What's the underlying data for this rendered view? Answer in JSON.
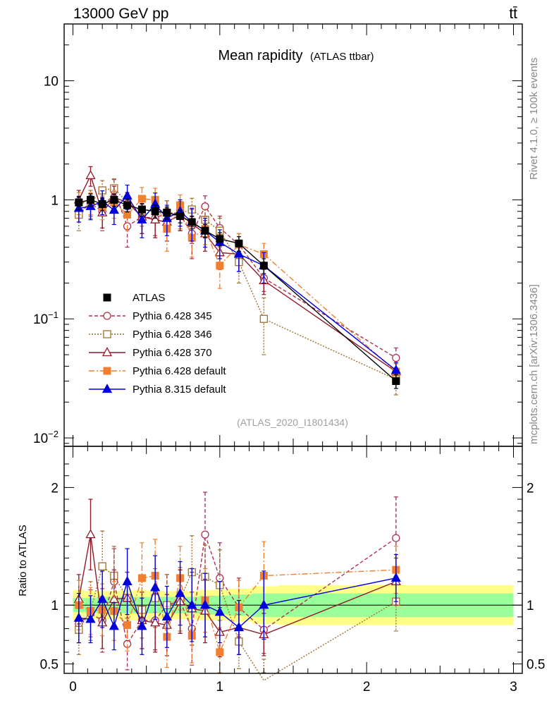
{
  "header": {
    "left": "13000 GeV pp",
    "right": "tt̄"
  },
  "side_texts": {
    "rivet": "Rivet 4.1.0, ≥ 100k events",
    "mcplots": "mcplots.cern.ch [arXiv:1306.3436]"
  },
  "chart_data": {
    "type": "line",
    "title": "Mean rapidity",
    "subtitle": "(ATLAS ttbar)",
    "watermark": "(ATLAS_2020_I1801434)",
    "xlim": [
      -0.06,
      3.06
    ],
    "main": {
      "yscale": "log",
      "ylim": [
        0.0085,
        30
      ],
      "ytick_labels": [
        {
          "value": 10,
          "label": "10",
          "sup": ""
        },
        {
          "value": 1,
          "label": "1",
          "sup": ""
        },
        {
          "value": 0.1,
          "label": "10",
          "sup": "−1"
        },
        {
          "value": 0.01,
          "label": "10",
          "sup": "−2"
        }
      ]
    },
    "ratio": {
      "ylabel": "Ratio to ATLAS",
      "ylim": [
        0.42,
        2.35
      ],
      "ytick_labels": [
        {
          "value": 2,
          "label": "2"
        },
        {
          "value": 1,
          "label": "1"
        },
        {
          "value": 0.5,
          "label": "0.5"
        }
      ]
    },
    "xticks": [
      {
        "value": 0,
        "label": "0"
      },
      {
        "value": 1,
        "label": "1"
      },
      {
        "value": 2,
        "label": "2"
      },
      {
        "value": 3,
        "label": "3"
      }
    ],
    "x": [
      0.04,
      0.12,
      0.2,
      0.28,
      0.37,
      0.47,
      0.56,
      0.64,
      0.73,
      0.81,
      0.9,
      1.0,
      1.13,
      1.3,
      2.2
    ],
    "bands": [
      {
        "x0": 0.0,
        "x1": 0.08,
        "g": 0.06,
        "y": 0.13
      },
      {
        "x0": 0.08,
        "x1": 0.16,
        "g": 0.06,
        "y": 0.12
      },
      {
        "x0": 0.16,
        "x1": 0.24,
        "g": 0.07,
        "y": 0.12
      },
      {
        "x0": 0.24,
        "x1": 0.32,
        "g": 0.07,
        "y": 0.12
      },
      {
        "x0": 0.32,
        "x1": 0.42,
        "g": 0.07,
        "y": 0.13
      },
      {
        "x0": 0.42,
        "x1": 0.51,
        "g": 0.07,
        "y": 0.13
      },
      {
        "x0": 0.51,
        "x1": 0.6,
        "g": 0.07,
        "y": 0.12
      },
      {
        "x0": 0.6,
        "x1": 0.68,
        "g": 0.07,
        "y": 0.12
      },
      {
        "x0": 0.68,
        "x1": 0.77,
        "g": 0.07,
        "y": 0.12
      },
      {
        "x0": 0.77,
        "x1": 0.86,
        "g": 0.07,
        "y": 0.12
      },
      {
        "x0": 0.86,
        "x1": 0.95,
        "g": 0.08,
        "y": 0.13
      },
      {
        "x0": 0.95,
        "x1": 1.06,
        "g": 0.08,
        "y": 0.13
      },
      {
        "x0": 1.06,
        "x1": 1.22,
        "g": 0.09,
        "y": 0.14
      },
      {
        "x0": 1.22,
        "x1": 1.4,
        "g": 0.1,
        "y": 0.16
      },
      {
        "x0": 1.4,
        "x1": 3.0,
        "g": 0.1,
        "y": 0.17
      }
    ],
    "series": [
      {
        "name": "ATLAS",
        "color": "#000000",
        "dash": "",
        "marker": "square-filled",
        "values": [
          0.95,
          1.0,
          0.92,
          1.0,
          0.9,
          0.83,
          0.8,
          0.78,
          0.73,
          0.65,
          0.55,
          0.47,
          0.43,
          0.28,
          0.03
        ],
        "err": [
          0.12,
          0.12,
          0.11,
          0.12,
          0.11,
          0.1,
          0.1,
          0.09,
          0.09,
          0.08,
          0.07,
          0.06,
          0.06,
          0.04,
          0.004
        ],
        "ratio": [],
        "ratio_err": []
      },
      {
        "name": "Pythia 6.428 345",
        "color": "#b03050",
        "dash": "5,3",
        "marker": "circle-open",
        "values": [
          0.8,
          0.93,
          0.8,
          1.2,
          0.6,
          0.72,
          0.7,
          0.78,
          0.75,
          0.52,
          0.88,
          0.58,
          0.42,
          0.22,
          0.047
        ],
        "err": [
          0.15,
          0.2,
          0.25,
          0.28,
          0.2,
          0.2,
          0.2,
          0.2,
          0.2,
          0.2,
          0.2,
          0.15,
          0.1,
          0.05,
          0.01
        ],
        "ratio": [
          0.84,
          0.93,
          0.87,
          1.2,
          0.67,
          0.87,
          0.87,
          1.0,
          1.03,
          0.8,
          1.6,
          1.23,
          0.98,
          0.79,
          1.57
        ],
        "ratio_err": [
          0.16,
          0.2,
          0.27,
          0.28,
          0.22,
          0.24,
          0.25,
          0.26,
          0.27,
          0.31,
          0.36,
          0.3,
          0.25,
          0.2,
          0.35
        ]
      },
      {
        "name": "Pythia 6.428 346",
        "color": "#a07030",
        "dash": "2,2",
        "marker": "square-open",
        "values": [
          0.75,
          0.95,
          1.2,
          1.25,
          0.95,
          0.8,
          0.85,
          0.78,
          0.77,
          0.83,
          0.68,
          0.55,
          0.3,
          0.1,
          0.031
        ],
        "err": [
          0.2,
          0.25,
          0.25,
          0.25,
          0.2,
          0.2,
          0.2,
          0.2,
          0.2,
          0.2,
          0.15,
          0.15,
          0.1,
          0.05,
          0.008
        ],
        "ratio": [
          0.79,
          0.95,
          1.33,
          1.25,
          1.06,
          0.96,
          1.06,
          1.0,
          1.05,
          1.28,
          1.24,
          1.17,
          0.69,
          0.36,
          1.03
        ],
        "ratio_err": [
          0.21,
          0.25,
          0.3,
          0.25,
          0.22,
          0.24,
          0.25,
          0.26,
          0.27,
          0.31,
          0.27,
          0.3,
          0.23,
          0.18,
          0.25
        ]
      },
      {
        "name": "Pythia 6.428 370",
        "color": "#901828",
        "dash": "",
        "marker": "triangle-open",
        "values": [
          1.0,
          1.6,
          0.78,
          1.05,
          0.95,
          0.72,
          0.68,
          0.65,
          0.75,
          0.63,
          0.52,
          0.36,
          0.35,
          0.21,
          0.036
        ],
        "err": [
          0.2,
          0.3,
          0.2,
          0.25,
          0.2,
          0.2,
          0.2,
          0.2,
          0.2,
          0.2,
          0.15,
          0.1,
          0.1,
          0.05,
          0.006
        ],
        "ratio": [
          1.05,
          1.6,
          0.85,
          1.05,
          1.06,
          0.87,
          0.85,
          0.83,
          1.03,
          0.97,
          0.95,
          0.77,
          0.81,
          0.75,
          1.2
        ],
        "ratio_err": [
          0.21,
          0.3,
          0.22,
          0.25,
          0.22,
          0.24,
          0.25,
          0.26,
          0.27,
          0.31,
          0.27,
          0.21,
          0.23,
          0.18,
          0.2
        ]
      },
      {
        "name": "Pythia 6.428 default",
        "color": "#f08030",
        "dash": "8,3,2,3",
        "marker": "square-filled",
        "values": [
          0.95,
          0.95,
          0.88,
          0.95,
          0.75,
          1.02,
          1.0,
          0.57,
          0.9,
          0.48,
          0.57,
          0.28,
          0.42,
          0.35,
          0.036
        ],
        "err": [
          0.2,
          0.2,
          0.2,
          0.25,
          0.2,
          0.25,
          0.25,
          0.2,
          0.2,
          0.15,
          0.15,
          0.1,
          0.1,
          0.08,
          0.006
        ],
        "ratio": [
          1.0,
          0.95,
          0.96,
          0.95,
          0.83,
          1.23,
          1.25,
          0.73,
          1.23,
          0.74,
          1.04,
          0.6,
          0.98,
          1.25,
          1.3
        ],
        "ratio_err": [
          0.21,
          0.2,
          0.22,
          0.25,
          0.22,
          0.3,
          0.31,
          0.26,
          0.27,
          0.23,
          0.27,
          0.21,
          0.23,
          0.29,
          0.2
        ]
      },
      {
        "name": "Pythia 8.315 default",
        "color": "#0000dd",
        "dash": "",
        "marker": "triangle-filled",
        "values": [
          0.85,
          0.88,
          0.97,
          0.82,
          1.08,
          0.68,
          0.92,
          0.7,
          0.8,
          0.65,
          0.55,
          0.44,
          0.35,
          0.28,
          0.037
        ],
        "err": [
          0.2,
          0.2,
          0.22,
          0.2,
          0.25,
          0.2,
          0.22,
          0.2,
          0.2,
          0.2,
          0.15,
          0.12,
          0.1,
          0.08,
          0.006
        ],
        "ratio": [
          0.89,
          0.88,
          1.05,
          0.82,
          1.2,
          0.82,
          1.15,
          0.9,
          1.1,
          1.0,
          1.0,
          0.94,
          0.81,
          1.0,
          1.23
        ],
        "ratio_err": [
          0.21,
          0.2,
          0.24,
          0.2,
          0.28,
          0.24,
          0.27,
          0.26,
          0.27,
          0.31,
          0.27,
          0.26,
          0.23,
          0.29,
          0.2
        ]
      }
    ]
  }
}
